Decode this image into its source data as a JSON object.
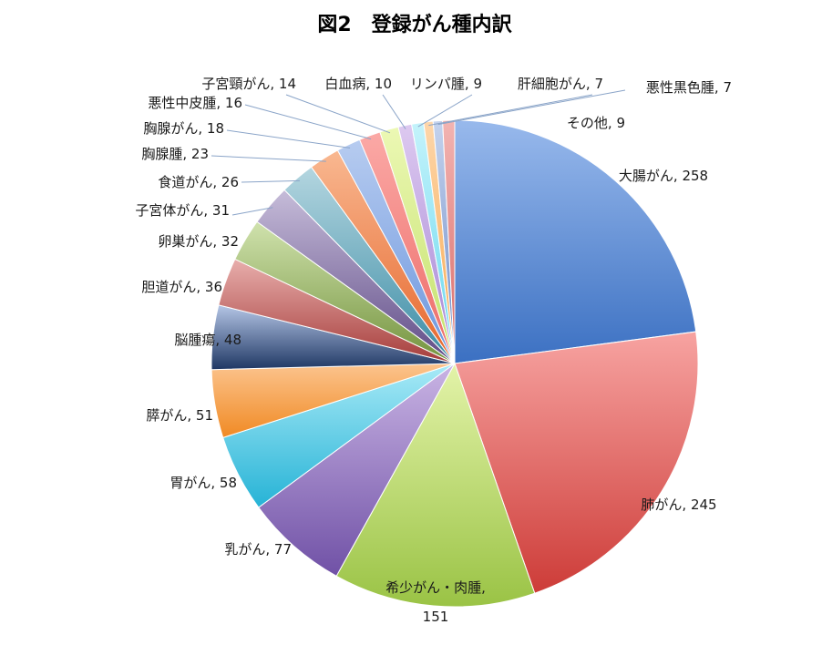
{
  "chart_data": {
    "type": "pie",
    "title": "図2　登録がん種内訳",
    "start_angle_deg": 0,
    "direction": "clockwise",
    "legend": "none",
    "slices": [
      {
        "label": "大腸がん",
        "value": 258,
        "label_text": "大腸がん, 258",
        "colors": [
          "#98b9ec",
          "#3b70c2"
        ]
      },
      {
        "label": "肺がん",
        "value": 245,
        "label_text": "肺がん, 245",
        "colors": [
          "#f7a3a1",
          "#cd3c38"
        ]
      },
      {
        "label": "希少がん・肉腫",
        "value": 151,
        "label_text": "希少がん・肉腫,",
        "label_text2": "151",
        "colors": [
          "#e3f3a9",
          "#9ac345"
        ]
      },
      {
        "label": "乳がん",
        "value": 77,
        "label_text": "乳がん, 77",
        "colors": [
          "#c9b4e4",
          "#7051a6"
        ]
      },
      {
        "label": "胃がん",
        "value": 58,
        "label_text": "胃がん, 58",
        "colors": [
          "#a9eaf7",
          "#26b3d6"
        ]
      },
      {
        "label": "膵がん",
        "value": 51,
        "label_text": "膵がん, 51",
        "colors": [
          "#fcc48e",
          "#f08a24"
        ]
      },
      {
        "label": "脳腫瘍",
        "value": 48,
        "label_text": "脳腫瘍, 48",
        "colors": [
          "#b5c6e6",
          "#1f3864"
        ]
      },
      {
        "label": "胆道がん",
        "value": 36,
        "label_text": "胆道がん, 36",
        "colors": [
          "#e8aeac",
          "#a53c3a"
        ]
      },
      {
        "label": "卵巣がん",
        "value": 32,
        "label_text": "卵巣がん, 32",
        "colors": [
          "#d0e2ad",
          "#72923c"
        ]
      },
      {
        "label": "子宮体がん",
        "value": 31,
        "label_text": "子宮体がん, 31",
        "colors": [
          "#c6bcd9",
          "#5f4b86"
        ]
      },
      {
        "label": "食道がん",
        "value": 26,
        "label_text": "食道がん, 26",
        "colors": [
          "#b4d6e0",
          "#3a8ba4"
        ]
      },
      {
        "label": "胸腺腫",
        "value": 23,
        "label_text": "胸腺腫, 23",
        "colors": [
          "#f9b891",
          "#e5652a"
        ]
      },
      {
        "label": "胸腺がん",
        "value": 18,
        "label_text": "胸腺がん, 18",
        "colors": [
          "#b7ccf0",
          "#6b95dd"
        ]
      },
      {
        "label": "悪性中皮腫",
        "value": 16,
        "label_text": "悪性中皮腫, 16",
        "colors": [
          "#fba9a6",
          "#ec6a66"
        ]
      },
      {
        "label": "子宮頸がん",
        "value": 14,
        "label_text": "子宮頸がん, 14",
        "colors": [
          "#ecf8b4",
          "#c2e06a"
        ]
      },
      {
        "label": "白血病",
        "value": 10,
        "label_text": "白血病, 10",
        "colors": [
          "#ddc9f0",
          "#a586d4"
        ]
      },
      {
        "label": "リンパ腫",
        "value": 9,
        "label_text": "リンパ腫, 9",
        "colors": [
          "#c4f3fb",
          "#66d6ee"
        ]
      },
      {
        "label": "肝細胞がん",
        "value": 7,
        "label_text": "肝細胞がん, 7",
        "colors": [
          "#fdd6aa",
          "#f7a950"
        ]
      },
      {
        "label": "悪性黒色腫",
        "value": 7,
        "label_text": "悪性黒色腫, 7",
        "colors": [
          "#c4d3ee",
          "#6c89c4"
        ]
      },
      {
        "label": "その他",
        "value": 9,
        "label_text": "その他, 9",
        "colors": [
          "#f2b4b2",
          "#d96a66"
        ]
      }
    ]
  }
}
